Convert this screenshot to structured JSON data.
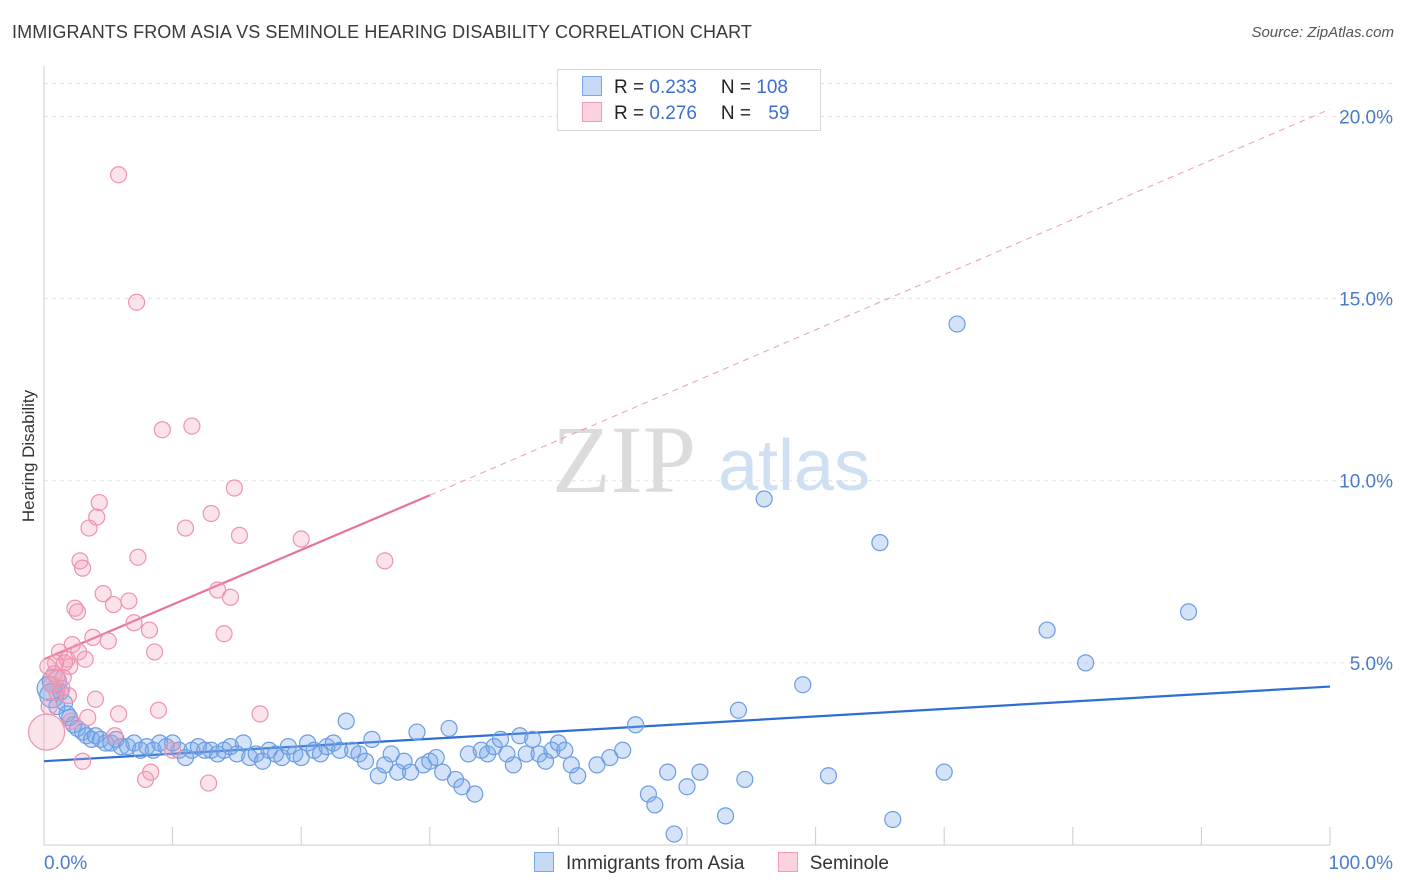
{
  "title": "IMMIGRANTS FROM ASIA VS SEMINOLE HEARING DISABILITY CORRELATION CHART",
  "source": "Source: ZipAtlas.com",
  "watermark": {
    "zip": "ZIP",
    "atlas": "atlas"
  },
  "legend": {
    "rows": [
      {
        "r_label": "R = ",
        "r_value": "0.233",
        "n_label": "N = ",
        "n_value": "108",
        "color": "#7aa8e8"
      },
      {
        "r_label": "R = ",
        "r_value": "0.276",
        "n_label": "N = ",
        "n_value": "59",
        "color": "#f29bb5"
      }
    ]
  },
  "bottom_legend": [
    {
      "label": "Immigrants from Asia",
      "color": "#7aa8e8"
    },
    {
      "label": "Seminole",
      "color": "#f29bb5"
    }
  ],
  "chart_data": {
    "type": "scatter",
    "title": "IMMIGRANTS FROM ASIA VS SEMINOLE HEARING DISABILITY CORRELATION CHART",
    "xlabel": "",
    "ylabel": "Hearing Disability",
    "xlim": [
      0,
      100
    ],
    "ylim": [
      0,
      21
    ],
    "x_tick_labels": [
      "0.0%",
      "100.0%"
    ],
    "y_ticks": [
      5,
      10,
      15,
      20
    ],
    "y_tick_labels": [
      "5.0%",
      "10.0%",
      "15.0%",
      "20.0%"
    ],
    "grid": true,
    "series": [
      {
        "name": "Immigrants from Asia",
        "color": "#7aa8e8",
        "trend": {
          "x0": 0,
          "y0": 2.3,
          "x1": 100,
          "y1": 4.35,
          "dashed_to": null
        },
        "points": [
          [
            0.4,
            4.3
          ],
          [
            0.6,
            4.1
          ],
          [
            0.8,
            4.5
          ],
          [
            1.0,
            3.8
          ],
          [
            1.3,
            4.2
          ],
          [
            1.6,
            3.9
          ],
          [
            1.8,
            3.6
          ],
          [
            2.0,
            3.5
          ],
          [
            2.3,
            3.3
          ],
          [
            2.6,
            3.2
          ],
          [
            3.0,
            3.1
          ],
          [
            3.3,
            3.0
          ],
          [
            3.7,
            2.9
          ],
          [
            4.0,
            3.0
          ],
          [
            4.4,
            2.9
          ],
          [
            4.8,
            2.8
          ],
          [
            5.2,
            2.8
          ],
          [
            5.6,
            2.9
          ],
          [
            6.0,
            2.7
          ],
          [
            6.5,
            2.7
          ],
          [
            7.0,
            2.8
          ],
          [
            7.5,
            2.6
          ],
          [
            8.0,
            2.7
          ],
          [
            8.5,
            2.6
          ],
          [
            9.0,
            2.8
          ],
          [
            9.5,
            2.7
          ],
          [
            10.0,
            2.8
          ],
          [
            10.5,
            2.6
          ],
          [
            11.0,
            2.4
          ],
          [
            11.5,
            2.6
          ],
          [
            12.0,
            2.7
          ],
          [
            12.5,
            2.6
          ],
          [
            13.0,
            2.6
          ],
          [
            13.5,
            2.5
          ],
          [
            14.0,
            2.6
          ],
          [
            14.5,
            2.7
          ],
          [
            15.0,
            2.5
          ],
          [
            15.5,
            2.8
          ],
          [
            16.0,
            2.4
          ],
          [
            16.5,
            2.5
          ],
          [
            17.0,
            2.3
          ],
          [
            17.5,
            2.6
          ],
          [
            18.0,
            2.5
          ],
          [
            18.5,
            2.4
          ],
          [
            19.0,
            2.7
          ],
          [
            19.5,
            2.5
          ],
          [
            20.0,
            2.4
          ],
          [
            20.5,
            2.8
          ],
          [
            21.0,
            2.6
          ],
          [
            21.5,
            2.5
          ],
          [
            22.0,
            2.7
          ],
          [
            22.5,
            2.8
          ],
          [
            23.0,
            2.6
          ],
          [
            23.5,
            3.4
          ],
          [
            24.0,
            2.6
          ],
          [
            24.5,
            2.5
          ],
          [
            25.0,
            2.3
          ],
          [
            25.5,
            2.9
          ],
          [
            26.0,
            1.9
          ],
          [
            26.5,
            2.2
          ],
          [
            27.0,
            2.5
          ],
          [
            27.5,
            2.0
          ],
          [
            28.0,
            2.3
          ],
          [
            28.5,
            2.0
          ],
          [
            29.0,
            3.1
          ],
          [
            29.5,
            2.2
          ],
          [
            30.0,
            2.3
          ],
          [
            30.5,
            2.4
          ],
          [
            31.0,
            2.0
          ],
          [
            31.5,
            3.2
          ],
          [
            32.0,
            1.8
          ],
          [
            32.5,
            1.6
          ],
          [
            33.0,
            2.5
          ],
          [
            33.5,
            1.4
          ],
          [
            34.0,
            2.6
          ],
          [
            34.5,
            2.5
          ],
          [
            35.0,
            2.7
          ],
          [
            35.5,
            2.9
          ],
          [
            36.0,
            2.5
          ],
          [
            36.5,
            2.2
          ],
          [
            37.0,
            3.0
          ],
          [
            37.5,
            2.5
          ],
          [
            38.0,
            2.9
          ],
          [
            38.5,
            2.5
          ],
          [
            39.0,
            2.3
          ],
          [
            39.5,
            2.6
          ],
          [
            40.0,
            2.8
          ],
          [
            40.5,
            2.6
          ],
          [
            41.0,
            2.2
          ],
          [
            41.5,
            1.9
          ],
          [
            43.0,
            2.2
          ],
          [
            44.0,
            2.4
          ],
          [
            45.0,
            2.6
          ],
          [
            46.0,
            3.3
          ],
          [
            47.0,
            1.4
          ],
          [
            47.5,
            1.1
          ],
          [
            48.5,
            2.0
          ],
          [
            49.0,
            0.3
          ],
          [
            50.0,
            1.6
          ],
          [
            51.0,
            2.0
          ],
          [
            54.0,
            3.7
          ],
          [
            53.0,
            0.8
          ],
          [
            54.5,
            1.8
          ],
          [
            56.0,
            9.5
          ],
          [
            59.0,
            4.4
          ],
          [
            65.0,
            8.3
          ],
          [
            70.0,
            2.0
          ],
          [
            78.0,
            5.9
          ]
        ],
        "extra_points": [
          [
            81.0,
            5.0
          ],
          [
            71.0,
            14.3
          ],
          [
            89.0,
            6.4
          ],
          [
            66.0,
            0.7
          ],
          [
            61.0,
            1.9
          ]
        ]
      },
      {
        "name": "Seminole",
        "color": "#f29bb5",
        "trend": {
          "x0": 0,
          "y0": 5.1,
          "x1": 30,
          "y1": 9.6,
          "dashed_to": [
            100,
            20.2
          ]
        },
        "points": [
          [
            0.2,
            3.1
          ],
          [
            0.4,
            3.8
          ],
          [
            0.6,
            4.4
          ],
          [
            0.8,
            4.7
          ],
          [
            1.0,
            4.6
          ],
          [
            1.2,
            5.3
          ],
          [
            1.4,
            4.3
          ],
          [
            1.6,
            5.0
          ],
          [
            1.8,
            5.1
          ],
          [
            2.0,
            4.9
          ],
          [
            2.2,
            5.5
          ],
          [
            2.4,
            6.5
          ],
          [
            2.6,
            6.4
          ],
          [
            2.8,
            7.8
          ],
          [
            3.0,
            7.6
          ],
          [
            3.2,
            5.1
          ],
          [
            3.5,
            8.7
          ],
          [
            3.8,
            5.7
          ],
          [
            4.1,
            9.0
          ],
          [
            4.3,
            9.4
          ],
          [
            4.6,
            6.9
          ],
          [
            5.0,
            5.6
          ],
          [
            5.4,
            6.6
          ],
          [
            5.8,
            3.6
          ],
          [
            6.6,
            6.7
          ],
          [
            7.0,
            6.1
          ],
          [
            7.3,
            7.9
          ],
          [
            8.2,
            5.9
          ],
          [
            8.6,
            5.3
          ],
          [
            8.9,
            3.7
          ],
          [
            9.2,
            11.4
          ],
          [
            11.5,
            11.5
          ],
          [
            11.0,
            8.7
          ],
          [
            13.0,
            9.1
          ],
          [
            13.5,
            7.0
          ],
          [
            14.5,
            6.8
          ],
          [
            14.8,
            9.8
          ],
          [
            15.2,
            8.5
          ],
          [
            14.0,
            5.8
          ],
          [
            16.8,
            3.6
          ],
          [
            20.0,
            8.4
          ],
          [
            26.5,
            7.8
          ],
          [
            5.8,
            18.4
          ],
          [
            7.2,
            14.9
          ],
          [
            1.0,
            4.2
          ],
          [
            1.9,
            4.1
          ],
          [
            2.1,
            3.4
          ],
          [
            3.4,
            3.5
          ],
          [
            3.0,
            2.3
          ],
          [
            5.5,
            3.0
          ],
          [
            8.3,
            2.0
          ],
          [
            10.0,
            2.6
          ],
          [
            7.9,
            1.8
          ],
          [
            12.8,
            1.7
          ],
          [
            1.5,
            4.6
          ],
          [
            0.9,
            5.0
          ],
          [
            2.7,
            5.3
          ],
          [
            4.0,
            4.0
          ],
          [
            0.3,
            4.9
          ]
        ]
      }
    ]
  }
}
